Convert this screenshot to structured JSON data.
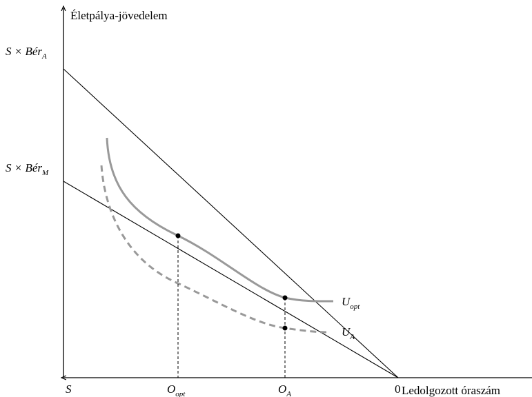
{
  "axes": {
    "y_label": "Életpálya-jövedelem",
    "x_label": "Ledolgozott óraszám"
  },
  "y_marks": [
    {
      "main": "S × Bér",
      "sub": "A"
    },
    {
      "main": "S × Bér",
      "sub": "M"
    }
  ],
  "x_marks": [
    {
      "main": "S"
    },
    {
      "main": "O",
      "sub": "opt"
    },
    {
      "main": "O",
      "sub": "A"
    },
    {
      "main": "0"
    }
  ],
  "curves": [
    {
      "main": "U",
      "sub": "opt"
    },
    {
      "main": "U",
      "sub": "A"
    }
  ]
}
